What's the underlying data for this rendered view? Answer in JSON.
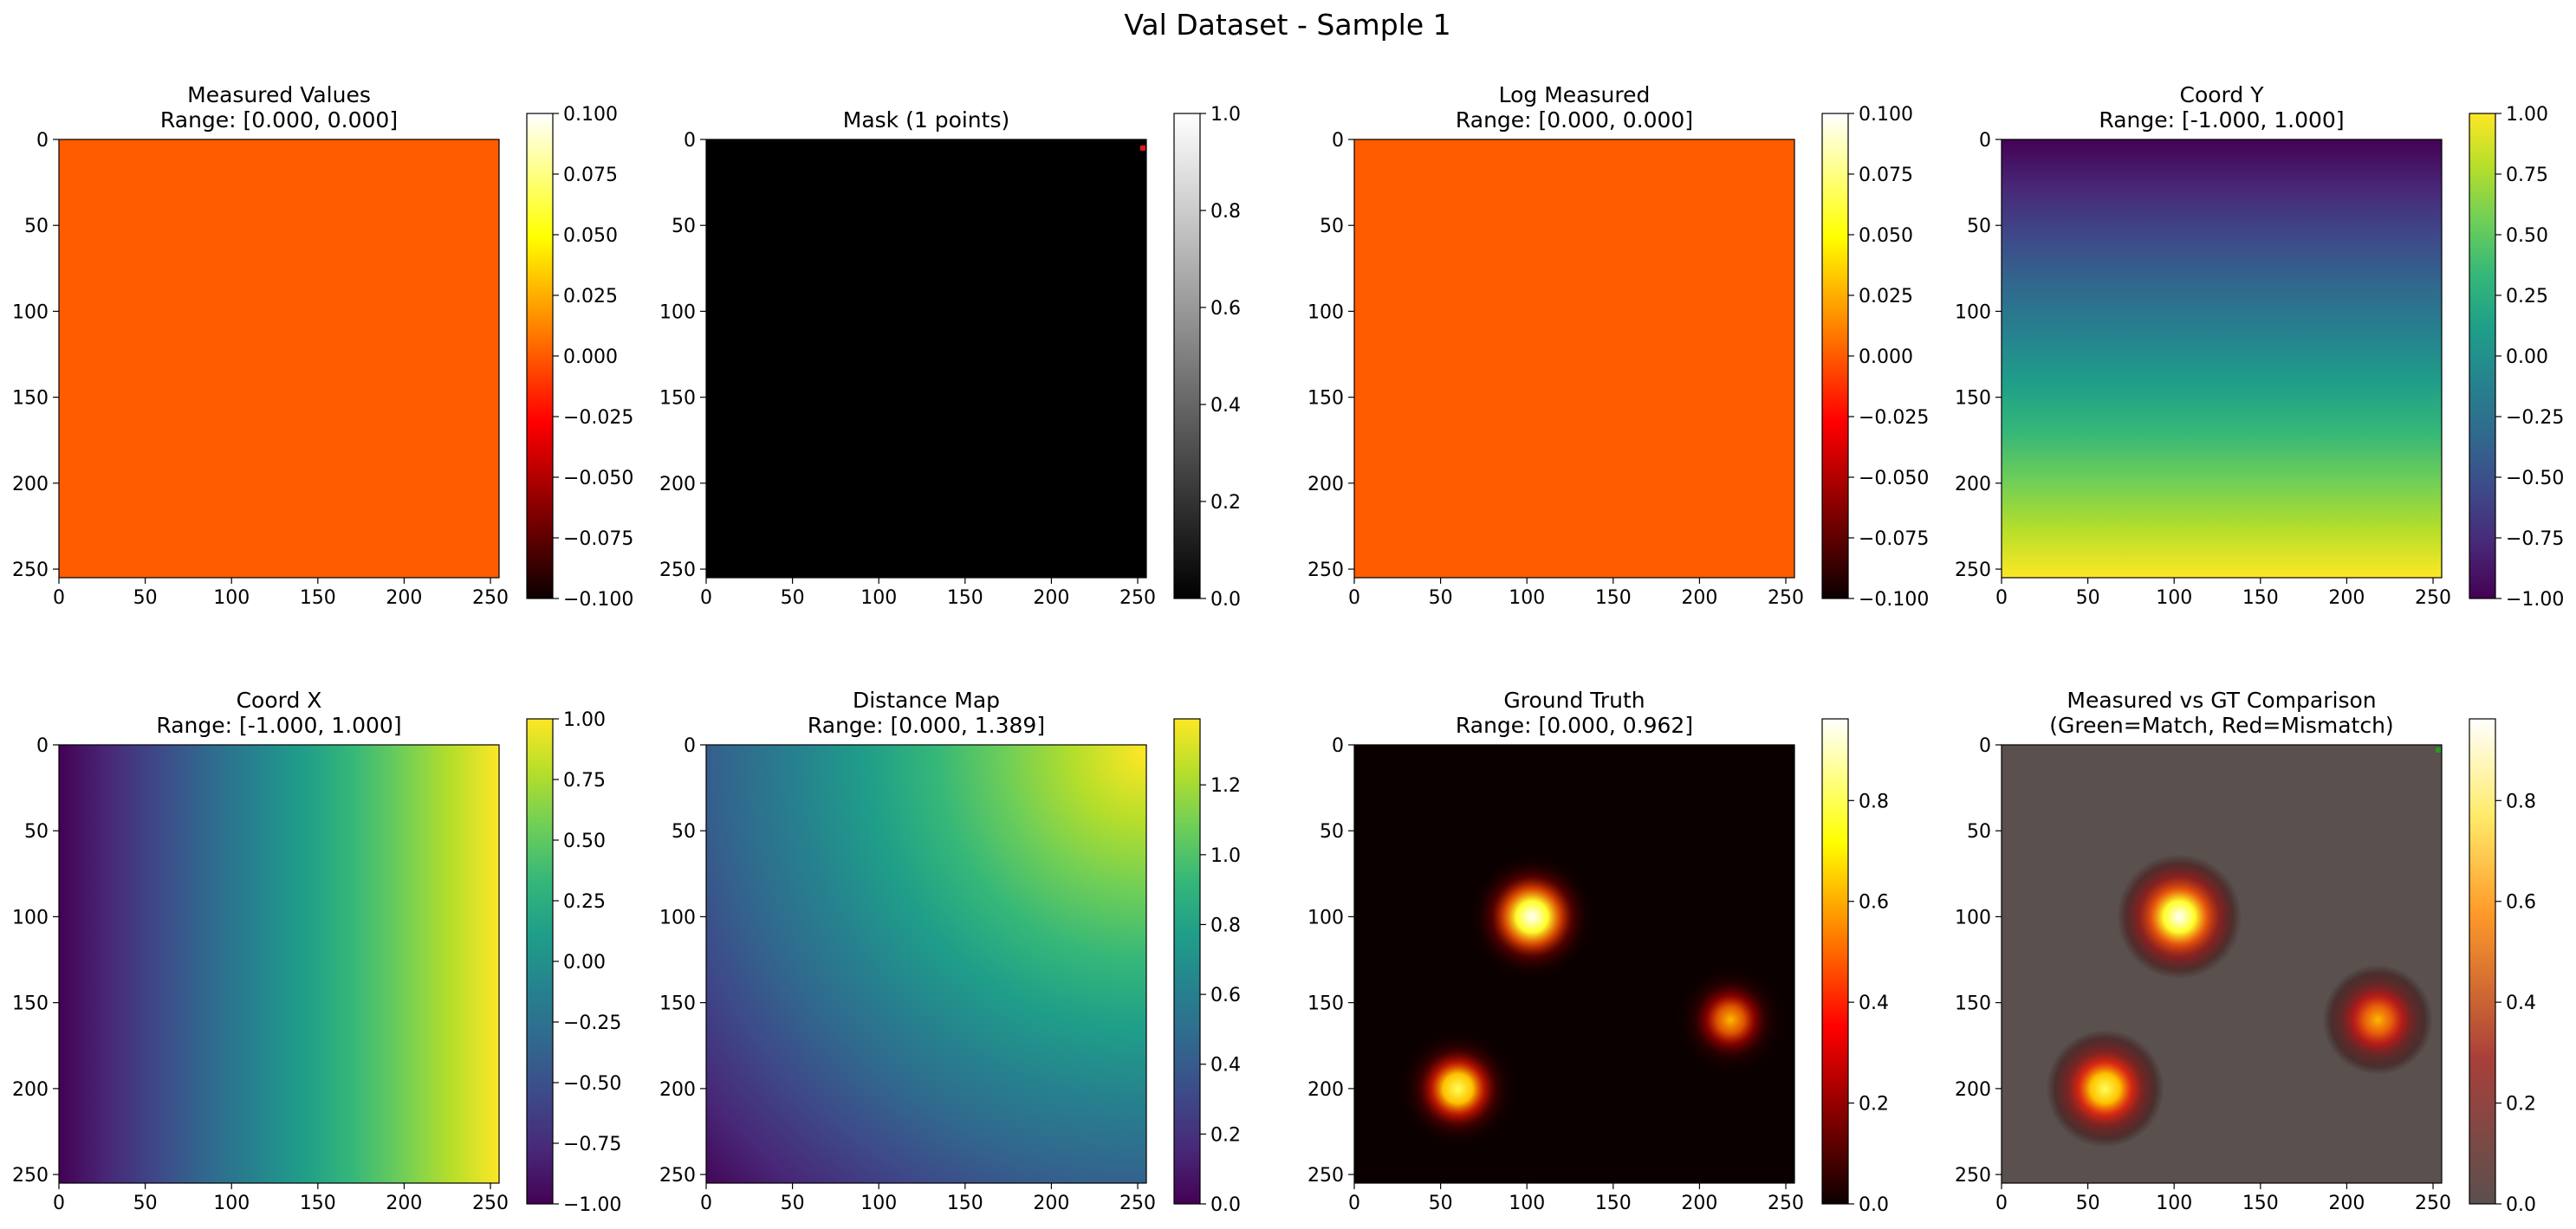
{
  "figure": {
    "suptitle": "Val Dataset - Sample 1"
  },
  "chart_data": [
    {
      "type": "heatmap",
      "title_lines": [
        "Measured Values",
        "Range: [0.000, 0.000]"
      ],
      "xlim": [
        0,
        255
      ],
      "ylim": [
        255,
        0
      ],
      "xticks": [
        0,
        50,
        100,
        150,
        200,
        250
      ],
      "yticks": [
        0,
        50,
        100,
        150,
        200,
        250
      ],
      "image": {
        "kind": "uniform",
        "color": "#ff5c00",
        "value": 0.0
      },
      "colorbar": {
        "cmap": "hot",
        "vmin": -0.1,
        "vmax": 0.1,
        "ticks": [
          -0.1,
          -0.075,
          -0.05,
          -0.025,
          0.0,
          0.025,
          0.05,
          0.075,
          0.1
        ],
        "tick_labels": [
          "−0.100",
          "−0.075",
          "−0.050",
          "−0.025",
          "0.000",
          "0.025",
          "0.050",
          "0.075",
          "0.100"
        ]
      }
    },
    {
      "type": "heatmap",
      "title_lines": [
        "Mask (1 points)"
      ],
      "xlim": [
        0,
        255
      ],
      "ylim": [
        255,
        0
      ],
      "xticks": [
        0,
        50,
        100,
        150,
        200,
        250
      ],
      "yticks": [
        0,
        50,
        100,
        150,
        200,
        250
      ],
      "image": {
        "kind": "uniform",
        "color": "#000000",
        "value": 0.0
      },
      "markers": [
        {
          "x": 253,
          "y": 5,
          "color": "#e8141a"
        }
      ],
      "colorbar": {
        "cmap": "gray",
        "vmin": 0,
        "vmax": 1,
        "ticks": [
          0,
          0.2,
          0.4,
          0.6,
          0.8,
          1.0
        ],
        "tick_labels": [
          "0.0",
          "0.2",
          "0.4",
          "0.6",
          "0.8",
          "1.0"
        ]
      }
    },
    {
      "type": "heatmap",
      "title_lines": [
        "Log Measured",
        "Range: [0.000, 0.000]"
      ],
      "xlim": [
        0,
        255
      ],
      "ylim": [
        255,
        0
      ],
      "xticks": [
        0,
        50,
        100,
        150,
        200,
        250
      ],
      "yticks": [
        0,
        50,
        100,
        150,
        200,
        250
      ],
      "image": {
        "kind": "uniform",
        "color": "#ff5c00",
        "value": 0.0
      },
      "colorbar": {
        "cmap": "hot",
        "vmin": -0.1,
        "vmax": 0.1,
        "ticks": [
          -0.1,
          -0.075,
          -0.05,
          -0.025,
          0.0,
          0.025,
          0.05,
          0.075,
          0.1
        ],
        "tick_labels": [
          "−0.100",
          "−0.075",
          "−0.050",
          "−0.025",
          "0.000",
          "0.025",
          "0.050",
          "0.075",
          "0.100"
        ]
      }
    },
    {
      "type": "heatmap",
      "title_lines": [
        "Coord Y",
        "Range: [-1.000, 1.000]"
      ],
      "xlim": [
        0,
        255
      ],
      "ylim": [
        255,
        0
      ],
      "xticks": [
        0,
        50,
        100,
        150,
        200,
        250
      ],
      "yticks": [
        0,
        50,
        100,
        150,
        200,
        250
      ],
      "image": {
        "kind": "gradient",
        "direction": "vertical",
        "from": -1.0,
        "to": 1.0
      },
      "colorbar": {
        "cmap": "viridis",
        "vmin": -1,
        "vmax": 1,
        "ticks": [
          -1,
          -0.75,
          -0.5,
          -0.25,
          0,
          0.25,
          0.5,
          0.75,
          1
        ],
        "tick_labels": [
          "−1.00",
          "−0.75",
          "−0.50",
          "−0.25",
          "0.00",
          "0.25",
          "0.50",
          "0.75",
          "1.00"
        ]
      }
    },
    {
      "type": "heatmap",
      "title_lines": [
        "Coord X",
        "Range: [-1.000, 1.000]"
      ],
      "xlim": [
        0,
        255
      ],
      "ylim": [
        255,
        0
      ],
      "xticks": [
        0,
        50,
        100,
        150,
        200,
        250
      ],
      "yticks": [
        0,
        50,
        100,
        150,
        200,
        250
      ],
      "image": {
        "kind": "gradient",
        "direction": "horizontal",
        "from": -1.0,
        "to": 1.0
      },
      "colorbar": {
        "cmap": "viridis",
        "vmin": -1,
        "vmax": 1,
        "ticks": [
          -1,
          -0.75,
          -0.5,
          -0.25,
          0,
          0.25,
          0.5,
          0.75,
          1
        ],
        "tick_labels": [
          "−1.00",
          "−0.75",
          "−0.50",
          "−0.25",
          "0.00",
          "0.25",
          "0.50",
          "0.75",
          "1.00"
        ]
      }
    },
    {
      "type": "heatmap",
      "title_lines": [
        "Distance Map",
        "Range: [0.000, 1.389]"
      ],
      "xlim": [
        0,
        255
      ],
      "ylim": [
        255,
        0
      ],
      "xticks": [
        0,
        50,
        100,
        150,
        200,
        250
      ],
      "yticks": [
        0,
        50,
        100,
        150,
        200,
        250
      ],
      "image": {
        "kind": "distance",
        "origin": [
          253,
          5
        ],
        "vmax": 1.389
      },
      "colorbar": {
        "cmap": "viridis",
        "vmin": 0,
        "vmax": 1.389,
        "ticks": [
          0,
          0.2,
          0.4,
          0.6,
          0.8,
          1.0,
          1.2
        ],
        "tick_labels": [
          "0.0",
          "0.2",
          "0.4",
          "0.6",
          "0.8",
          "1.0",
          "1.2"
        ]
      }
    },
    {
      "type": "heatmap",
      "title_lines": [
        "Ground Truth",
        "Range: [0.000, 0.962]"
      ],
      "xlim": [
        0,
        255
      ],
      "ylim": [
        255,
        0
      ],
      "xticks": [
        0,
        50,
        100,
        150,
        200,
        250
      ],
      "yticks": [
        0,
        50,
        100,
        150,
        200,
        250
      ],
      "image": {
        "kind": "blobs",
        "background": "#0b0000",
        "blobs": [
          {
            "x": 103,
            "y": 100,
            "peak": 0.962
          },
          {
            "x": 218,
            "y": 160,
            "peak": 0.62
          },
          {
            "x": 60,
            "y": 200,
            "peak": 0.8
          }
        ]
      },
      "colorbar": {
        "cmap": "hot",
        "vmin": 0,
        "vmax": 0.962,
        "ticks": [
          0,
          0.2,
          0.4,
          0.6,
          0.8
        ],
        "tick_labels": [
          "0.0",
          "0.2",
          "0.4",
          "0.6",
          "0.8"
        ]
      }
    },
    {
      "type": "heatmap",
      "title_lines": [
        "Measured vs GT Comparison",
        "(Green=Match, Red=Mismatch)"
      ],
      "xlim": [
        0,
        255
      ],
      "ylim": [
        255,
        0
      ],
      "xticks": [
        0,
        50,
        100,
        150,
        200,
        250
      ],
      "yticks": [
        0,
        50,
        100,
        150,
        200,
        250
      ],
      "image": {
        "kind": "blobs",
        "background": "#5a504e",
        "alpha": 0.65,
        "blobs": [
          {
            "x": 103,
            "y": 100,
            "peak": 0.962
          },
          {
            "x": 218,
            "y": 160,
            "peak": 0.62
          },
          {
            "x": 60,
            "y": 200,
            "peak": 0.8
          }
        ]
      },
      "markers": [
        {
          "x": 253,
          "y": 3,
          "color": "#1f9e1f"
        }
      ],
      "colorbar": {
        "cmap": "hot_alpha",
        "vmin": 0,
        "vmax": 0.962,
        "ticks": [
          0,
          0.2,
          0.4,
          0.6,
          0.8
        ],
        "tick_labels": [
          "0.0",
          "0.2",
          "0.4",
          "0.6",
          "0.8"
        ]
      }
    }
  ]
}
